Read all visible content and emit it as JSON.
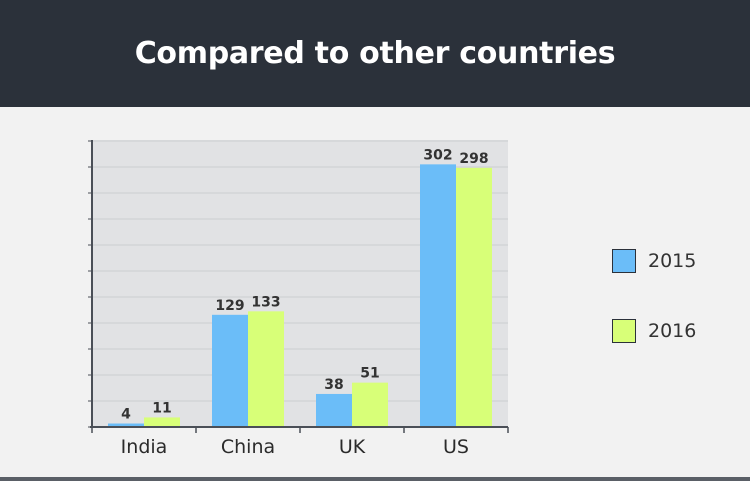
{
  "header": {
    "title": "Compared to other countries"
  },
  "colors": {
    "header_bg": "#2b313a",
    "plot_bg": "#e1e2e4",
    "series_2015": "#6bbdf8",
    "series_2016": "#d8ff78"
  },
  "chart_data": {
    "type": "bar",
    "title": "Compared to other countries",
    "categories": [
      "India",
      "China",
      "UK",
      "US"
    ],
    "series": [
      {
        "name": "2015",
        "values": [
          4,
          129,
          38,
          302
        ]
      },
      {
        "name": "2016",
        "values": [
          11,
          133,
          51,
          298
        ]
      }
    ],
    "xlabel": "",
    "ylabel": "",
    "ylim": [
      0,
      330
    ],
    "grid": true,
    "legend": "right",
    "data_labels": true
  }
}
